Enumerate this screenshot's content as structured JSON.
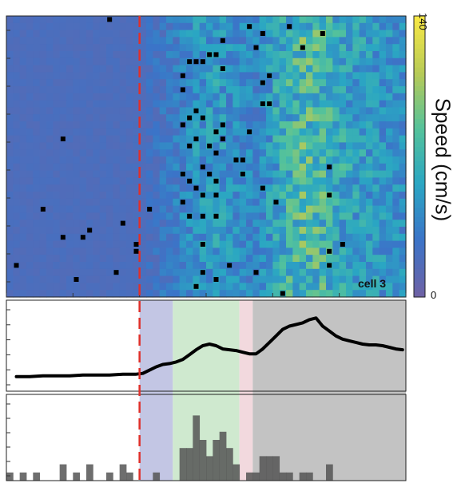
{
  "chart_data": [
    {
      "type": "heatmap",
      "title": "",
      "tag": "cell 3",
      "colorbar": {
        "label": "Speed (cm/s)",
        "min": 0,
        "max": 140,
        "tick_labels": [
          "140",
          "0"
        ],
        "colors": [
          "#6d62a6",
          "#3b74c8",
          "#2aa6c3",
          "#54c29b",
          "#b7ca57",
          "#f7e845"
        ]
      },
      "n_trials": 40,
      "n_bins": 60,
      "event_bin": 20,
      "base_speed": 18,
      "speed_profile": [
        {
          "bin": 0,
          "speed": 18
        },
        {
          "bin": 20,
          "speed": 18
        },
        {
          "bin": 21,
          "speed": 22
        },
        {
          "bin": 24,
          "speed": 30
        },
        {
          "bin": 28,
          "speed": 45
        },
        {
          "bin": 31,
          "speed": 50
        },
        {
          "bin": 35,
          "speed": 40
        },
        {
          "bin": 37,
          "speed": 36
        },
        {
          "bin": 40,
          "speed": 55
        },
        {
          "bin": 44,
          "speed": 75
        },
        {
          "bin": 47,
          "speed": 70
        },
        {
          "bin": 51,
          "speed": 55
        },
        {
          "bin": 55,
          "speed": 48
        },
        {
          "bin": 59,
          "speed": 42
        }
      ],
      "spikes": [
        {
          "trial": 0,
          "bin": 15
        },
        {
          "trial": 1,
          "bin": 36
        },
        {
          "trial": 1,
          "bin": 42
        },
        {
          "trial": 2,
          "bin": 38
        },
        {
          "trial": 2,
          "bin": 47
        },
        {
          "trial": 3,
          "bin": 32
        },
        {
          "trial": 4,
          "bin": 37
        },
        {
          "trial": 4,
          "bin": 44
        },
        {
          "trial": 5,
          "bin": 30
        },
        {
          "trial": 5,
          "bin": 31
        },
        {
          "trial": 6,
          "bin": 27
        },
        {
          "trial": 6,
          "bin": 28
        },
        {
          "trial": 6,
          "bin": 29
        },
        {
          "trial": 7,
          "bin": 32
        },
        {
          "trial": 8,
          "bin": 26
        },
        {
          "trial": 8,
          "bin": 39
        },
        {
          "trial": 9,
          "bin": 38
        },
        {
          "trial": 10,
          "bin": 26
        },
        {
          "trial": 12,
          "bin": 39
        },
        {
          "trial": 12,
          "bin": 38
        },
        {
          "trial": 13,
          "bin": 28
        },
        {
          "trial": 14,
          "bin": 27
        },
        {
          "trial": 14,
          "bin": 29
        },
        {
          "trial": 15,
          "bin": 26
        },
        {
          "trial": 15,
          "bin": 32
        },
        {
          "trial": 16,
          "bin": 31
        },
        {
          "trial": 16,
          "bin": 36
        },
        {
          "trial": 17,
          "bin": 8
        },
        {
          "trial": 17,
          "bin": 28
        },
        {
          "trial": 17,
          "bin": 32
        },
        {
          "trial": 18,
          "bin": 27
        },
        {
          "trial": 18,
          "bin": 30
        },
        {
          "trial": 19,
          "bin": 31
        },
        {
          "trial": 20,
          "bin": 34
        },
        {
          "trial": 20,
          "bin": 35
        },
        {
          "trial": 21,
          "bin": 29
        },
        {
          "trial": 21,
          "bin": 48
        },
        {
          "trial": 22,
          "bin": 26
        },
        {
          "trial": 22,
          "bin": 30
        },
        {
          "trial": 22,
          "bin": 35
        },
        {
          "trial": 23,
          "bin": 27
        },
        {
          "trial": 23,
          "bin": 31
        },
        {
          "trial": 24,
          "bin": 28
        },
        {
          "trial": 24,
          "bin": 38
        },
        {
          "trial": 25,
          "bin": 29
        },
        {
          "trial": 25,
          "bin": 31
        },
        {
          "trial": 25,
          "bin": 48
        },
        {
          "trial": 26,
          "bin": 26
        },
        {
          "trial": 26,
          "bin": 40
        },
        {
          "trial": 27,
          "bin": 5
        },
        {
          "trial": 27,
          "bin": 21
        },
        {
          "trial": 28,
          "bin": 27
        },
        {
          "trial": 28,
          "bin": 29
        },
        {
          "trial": 28,
          "bin": 31
        },
        {
          "trial": 29,
          "bin": 17
        },
        {
          "trial": 30,
          "bin": 12
        },
        {
          "trial": 31,
          "bin": 8
        },
        {
          "trial": 31,
          "bin": 11
        },
        {
          "trial": 32,
          "bin": 19
        },
        {
          "trial": 32,
          "bin": 29
        },
        {
          "trial": 32,
          "bin": 50
        },
        {
          "trial": 33,
          "bin": 19
        },
        {
          "trial": 33,
          "bin": 48
        },
        {
          "trial": 35,
          "bin": 1
        },
        {
          "trial": 35,
          "bin": 48
        },
        {
          "trial": 35,
          "bin": 33
        },
        {
          "trial": 36,
          "bin": 16
        },
        {
          "trial": 36,
          "bin": 29
        },
        {
          "trial": 36,
          "bin": 37
        },
        {
          "trial": 37,
          "bin": 10
        },
        {
          "trial": 37,
          "bin": 31
        },
        {
          "trial": 38,
          "bin": 28
        },
        {
          "trial": 39,
          "bin": 41
        }
      ]
    },
    {
      "type": "line",
      "title": "",
      "xlabel": "",
      "ylabel": "",
      "epochs": [
        {
          "from": 20,
          "to": 25,
          "color": "#c3c6e4"
        },
        {
          "from": 25,
          "to": 35,
          "color": "#cfe9cf"
        },
        {
          "from": 35,
          "to": 37,
          "color": "#f2d9de"
        },
        {
          "from": 37,
          "to": 60,
          "color": "#c3c3c3"
        }
      ],
      "y_range": [
        0,
        100
      ],
      "y_tick_count": 6,
      "series": [
        {
          "x": [
            1,
            3,
            5,
            7,
            9,
            11,
            13,
            15,
            17,
            19,
            20,
            21,
            22,
            23,
            24,
            25,
            26,
            27,
            28,
            29,
            30,
            31,
            32,
            33,
            34,
            35,
            36,
            37,
            38,
            39,
            40,
            41,
            42,
            43,
            44,
            45,
            46,
            47,
            48,
            49,
            50,
            51,
            52,
            53,
            54,
            55,
            56,
            57,
            58,
            59
          ],
          "values": [
            12,
            12,
            13,
            13,
            13,
            14,
            14,
            14,
            15,
            15,
            16,
            20,
            24,
            27,
            28,
            30,
            33,
            39,
            45,
            50,
            52,
            50,
            46,
            45,
            44,
            42,
            40,
            40,
            46,
            54,
            62,
            70,
            74,
            76,
            78,
            82,
            84,
            74,
            68,
            62,
            58,
            56,
            54,
            52,
            51,
            51,
            50,
            48,
            46,
            45
          ]
        }
      ]
    },
    {
      "type": "bar",
      "title": "",
      "xlabel": "",
      "ylabel": "",
      "y_range": [
        0,
        10
      ],
      "y_tick_count": 6,
      "series": [
        {
          "name": "",
          "color": "#555555",
          "x": [
            0,
            1,
            2,
            3,
            4,
            5,
            6,
            7,
            8,
            9,
            10,
            11,
            12,
            13,
            14,
            15,
            16,
            17,
            18,
            19,
            20,
            21,
            22,
            23,
            24,
            25,
            26,
            27,
            28,
            29,
            30,
            31,
            32,
            33,
            34,
            35,
            36,
            37,
            38,
            39,
            40,
            41,
            42,
            43,
            44,
            45,
            46,
            47,
            48,
            49,
            50,
            51,
            52,
            53,
            54,
            55,
            56,
            57,
            58,
            59
          ],
          "values": [
            1,
            0,
            1,
            0,
            1,
            0,
            0,
            0,
            2,
            0,
            1,
            0,
            2,
            0,
            0,
            1,
            0,
            2,
            1,
            0,
            0,
            0,
            1,
            0,
            0,
            0,
            4,
            4,
            8,
            5,
            3,
            5,
            6,
            4,
            2,
            0,
            1,
            1,
            3,
            3,
            3,
            1,
            1,
            0,
            1,
            1,
            0,
            0,
            2,
            0,
            0,
            0,
            0,
            0,
            0,
            0,
            0,
            0,
            0,
            0
          ]
        }
      ]
    }
  ]
}
